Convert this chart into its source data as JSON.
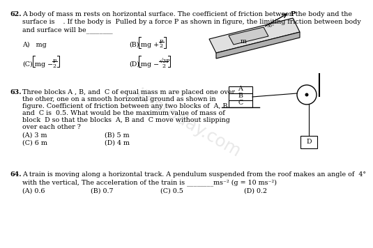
{
  "bg_color": "#ffffff",
  "text_color": "#000000",
  "q62_num": "62.",
  "q62_text1": "A body of mass m rests on horizontal surface. The coefficient of friction between the body and the",
  "q62_text2": "surface is    . If the body is  Pulled by a force P as shown in figure, the limiting friction between body",
  "q62_text3": "and surface will be________",
  "q62_A": "A)   mg",
  "q62_B_label": "(B)",
  "q62_B_expr": "mg +",
  "q62_C_label": "(C)",
  "q62_C_expr": "mg −",
  "q62_D_label": "(D)",
  "q62_D_expr": "mg −",
  "q62_D_num": "√3P",
  "q62_P": "P",
  "q62_2": "2",
  "q62_m": "m",
  "q62_30": "30°",
  "q62_P_label": "P",
  "q63_num": "63.",
  "q63_text1": "Three blocks A , B, and  C of equal mass m are placed one over",
  "q63_text2": "the other, one on a smooth horizontal ground as shown in",
  "q63_text3": "figure. Coefficient of friction between any two blocks of  A, B",
  "q63_text4": "and  C is  0.5. What would be the maximum value of mass of",
  "q63_text5": "block  D so that the blocks  A, B and  C move without slipping",
  "q63_text6": "over each other ?",
  "q63_A": "(A) 3 m",
  "q63_B": "(B) 5 m",
  "q63_C": "(C) 6 m",
  "q63_D": "(D) 4 m",
  "q64_num": "64.",
  "q64_text1": "A train is moving along a horizontal track. A pendulum suspended from the roof makes an angle of  4°",
  "q64_text2": "with the vertical, The acceleration of the train is ________ms⁻² (g = 10 ms⁻²)",
  "q64_A": "(A) 0.6",
  "q64_B": "(B) 0.7",
  "q64_C": "(C) 0.5",
  "q64_D": "(D) 0.2",
  "fs": 6.8,
  "fs_small": 5.8
}
